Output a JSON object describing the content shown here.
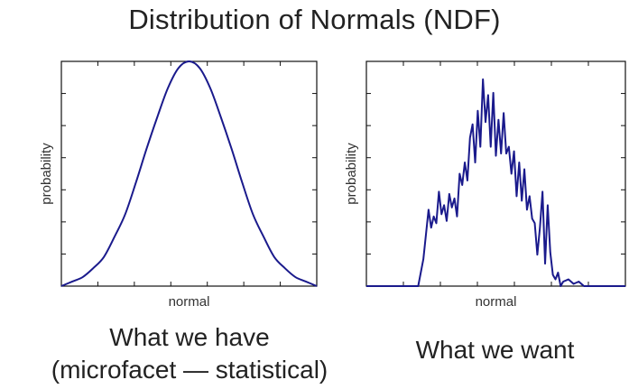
{
  "title": "Distribution of Normals (NDF)",
  "chart_data": [
    {
      "type": "line",
      "xlabel": "normal",
      "ylabel": "probability",
      "xlim": [
        -3,
        3
      ],
      "ylim": [
        0,
        1
      ],
      "series_color": "#1a1a8c",
      "x": [
        -3.0,
        -2.75,
        -2.5,
        -2.25,
        -2.0,
        -1.75,
        -1.5,
        -1.25,
        -1.0,
        -0.75,
        -0.5,
        -0.25,
        0.0,
        0.25,
        0.5,
        0.75,
        1.0,
        1.25,
        1.5,
        1.75,
        2.0,
        2.25,
        2.5,
        2.75,
        3.0
      ],
      "y": [
        0.0,
        0.02,
        0.04,
        0.08,
        0.13,
        0.22,
        0.32,
        0.46,
        0.61,
        0.75,
        0.88,
        0.97,
        1.0,
        0.97,
        0.88,
        0.75,
        0.61,
        0.46,
        0.32,
        0.22,
        0.13,
        0.08,
        0.04,
        0.02,
        0.0
      ],
      "caption_line1": "What we have",
      "caption_line2": "(microfacet — statistical)"
    },
    {
      "type": "line",
      "xlabel": "normal",
      "ylabel": "probability",
      "xlim": [
        0,
        100
      ],
      "ylim": [
        0,
        1
      ],
      "series_color": "#1a1a8c",
      "x": [
        0,
        20,
        22,
        24,
        25,
        26,
        27,
        28,
        29,
        30,
        31,
        32,
        33,
        34,
        35,
        36,
        37,
        38,
        39,
        40,
        41,
        42,
        43,
        44,
        45,
        46,
        47,
        48,
        49,
        50,
        51,
        52,
        53,
        54,
        55,
        56,
        57,
        58,
        59,
        60,
        61,
        62,
        63,
        64,
        65,
        66,
        67,
        68,
        69,
        70,
        71,
        72,
        73,
        74,
        75,
        76,
        78,
        80,
        82,
        84,
        100
      ],
      "y": [
        0.0,
        0.0,
        0.12,
        0.34,
        0.26,
        0.31,
        0.28,
        0.42,
        0.32,
        0.36,
        0.29,
        0.41,
        0.35,
        0.39,
        0.31,
        0.5,
        0.45,
        0.55,
        0.47,
        0.66,
        0.72,
        0.55,
        0.78,
        0.62,
        0.92,
        0.73,
        0.85,
        0.62,
        0.86,
        0.58,
        0.74,
        0.59,
        0.77,
        0.59,
        0.62,
        0.5,
        0.6,
        0.4,
        0.55,
        0.38,
        0.52,
        0.34,
        0.4,
        0.3,
        0.28,
        0.14,
        0.26,
        0.42,
        0.1,
        0.36,
        0.15,
        0.05,
        0.03,
        0.06,
        0.0,
        0.02,
        0.03,
        0.01,
        0.02,
        0.0,
        0.0
      ],
      "caption_line1": "What we want"
    }
  ]
}
